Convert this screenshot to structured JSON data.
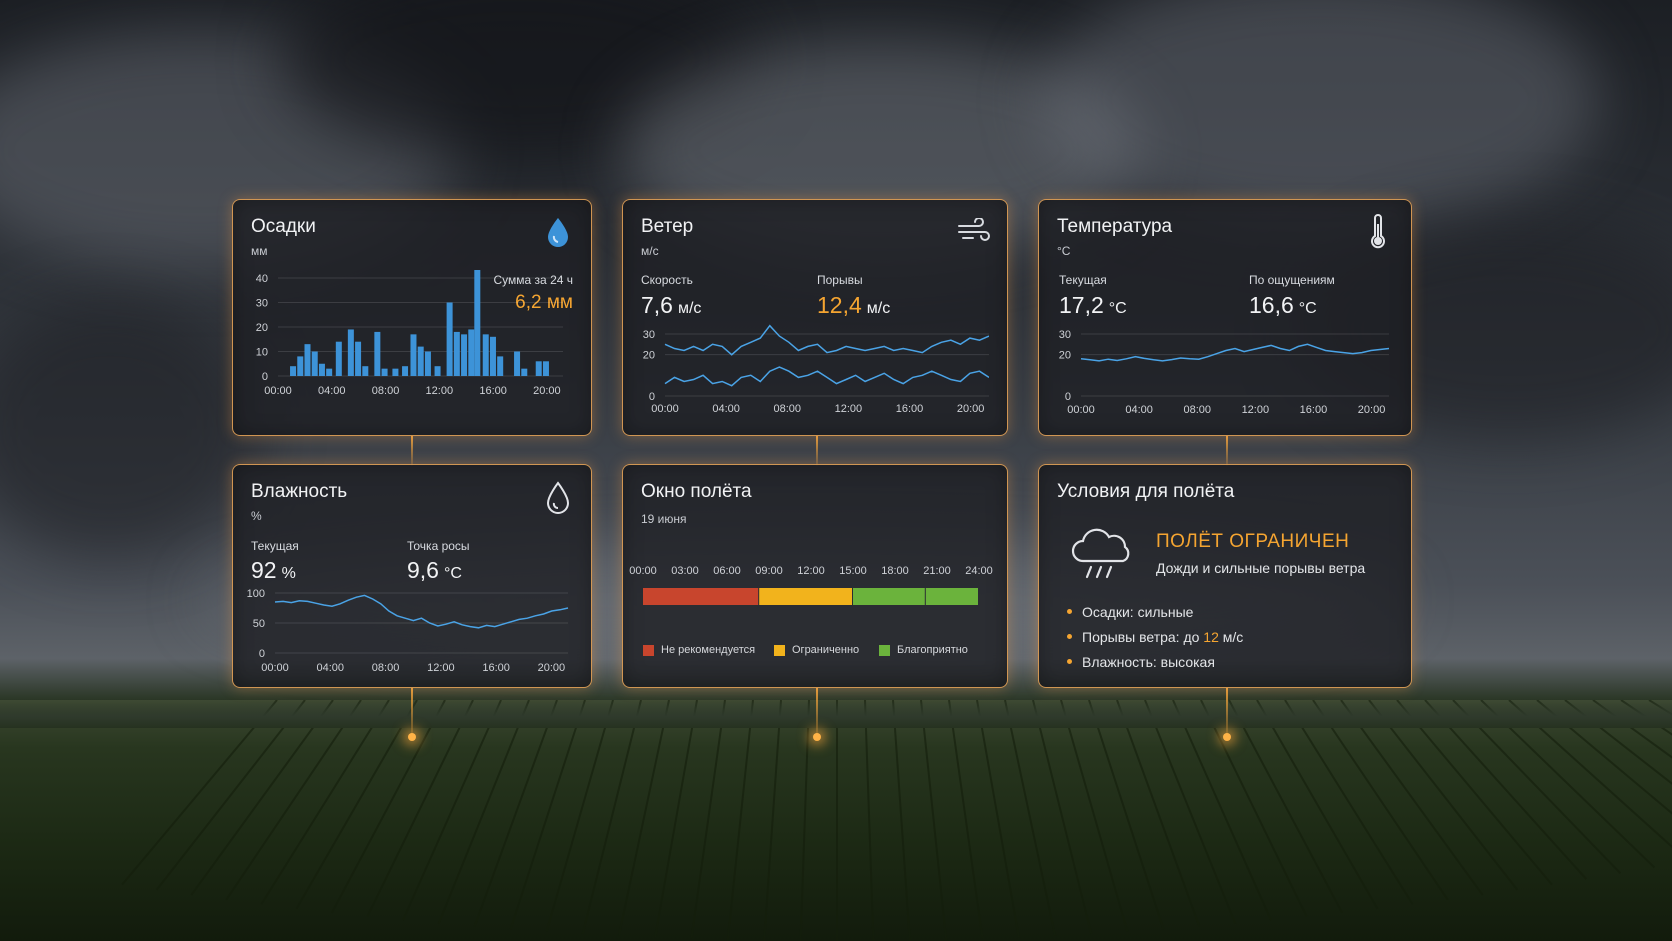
{
  "precipitation": {
    "title": "Осадки",
    "unit": "мм",
    "icon": "water-drop-icon",
    "sum_label": "Сумма за 24 ч",
    "sum_value": "6,2 мм",
    "y_ticks": [
      "40",
      "30",
      "20",
      "10",
      "0"
    ],
    "x_ticks": [
      "00:00",
      "04:00",
      "08:00",
      "12:00",
      "16:00",
      "20:00"
    ]
  },
  "wind": {
    "title": "Ветер",
    "unit": "м/с",
    "icon": "wind-icon",
    "speed_label": "Скорость",
    "speed_value": "7,6",
    "speed_unit": "м/с",
    "gust_label": "Порывы",
    "gust_value": "12,4",
    "gust_unit": "м/с",
    "y_ticks": [
      "30",
      "20",
      "0"
    ],
    "x_ticks": [
      "00:00",
      "04:00",
      "08:00",
      "12:00",
      "16:00",
      "20:00"
    ]
  },
  "temperature": {
    "title": "Температура",
    "unit": "°C",
    "icon": "thermometer-icon",
    "current_label": "Текущая",
    "current_value": "17,2",
    "current_unit": "°C",
    "feels_label": "По ощущениям",
    "feels_value": "16,6",
    "feels_unit": "°C",
    "y_ticks": [
      "30",
      "20",
      "0"
    ],
    "x_ticks": [
      "00:00",
      "04:00",
      "08:00",
      "12:00",
      "16:00",
      "20:00"
    ]
  },
  "humidity": {
    "title": "Влажность",
    "unit": "%",
    "icon": "humidity-drop-icon",
    "current_label": "Текущая",
    "current_value": "92",
    "current_unit": "%",
    "dew_label": "Точка росы",
    "dew_value": "9,6",
    "dew_unit": "°C",
    "y_ticks": [
      "100",
      "50",
      "0"
    ],
    "x_ticks": [
      "00:00",
      "04:00",
      "08:00",
      "12:00",
      "16:00",
      "20:00"
    ]
  },
  "flight_window": {
    "title": "Окно полёта",
    "date": "19 июня",
    "x_ticks": [
      "00:00",
      "03:00",
      "06:00",
      "09:00",
      "12:00",
      "15:00",
      "18:00",
      "21:00",
      "24:00"
    ],
    "legend": [
      {
        "label": "Не рекомендуется",
        "color": "#c8452d"
      },
      {
        "label": "Ограниченно",
        "color": "#f2b31c"
      },
      {
        "label": "Благоприятно",
        "color": "#6bb33c"
      }
    ]
  },
  "conditions": {
    "title": "Условия для полёта",
    "icon": "rain-cloud-icon",
    "status": "ПОЛЁТ ОГРАНИЧЕН",
    "reason": "Дожди и сильные порывы ветра",
    "b1": "Осадки: сильные",
    "b2_pre": "Порывы ветра: до ",
    "b2_val": "12",
    "b2_post": " м/с",
    "b3": "Влажность: высокая"
  },
  "chart_data": [
    {
      "type": "bar",
      "title": "Осадки",
      "ylabel": "мм",
      "ylim": [
        0,
        40
      ],
      "x_range_hours": [
        0,
        23
      ],
      "bars": [
        {
          "x": 1.0,
          "v": 4
        },
        {
          "x": 1.6,
          "v": 8
        },
        {
          "x": 2.2,
          "v": 13
        },
        {
          "x": 2.8,
          "v": 10
        },
        {
          "x": 3.4,
          "v": 5
        },
        {
          "x": 4.0,
          "v": 3
        },
        {
          "x": 4.8,
          "v": 14
        },
        {
          "x": 5.8,
          "v": 19
        },
        {
          "x": 6.4,
          "v": 14
        },
        {
          "x": 7.0,
          "v": 4
        },
        {
          "x": 8.0,
          "v": 18
        },
        {
          "x": 8.6,
          "v": 3
        },
        {
          "x": 9.5,
          "v": 3
        },
        {
          "x": 10.3,
          "v": 4
        },
        {
          "x": 11.0,
          "v": 17
        },
        {
          "x": 11.6,
          "v": 12
        },
        {
          "x": 12.2,
          "v": 10
        },
        {
          "x": 13.0,
          "v": 4
        },
        {
          "x": 14.0,
          "v": 30
        },
        {
          "x": 14.6,
          "v": 18
        },
        {
          "x": 15.2,
          "v": 17
        },
        {
          "x": 15.8,
          "v": 19
        },
        {
          "x": 16.3,
          "v": 44
        },
        {
          "x": 17.0,
          "v": 17
        },
        {
          "x": 17.6,
          "v": 16
        },
        {
          "x": 18.2,
          "v": 8
        },
        {
          "x": 19.6,
          "v": 10
        },
        {
          "x": 20.2,
          "v": 3
        },
        {
          "x": 21.4,
          "v": 6
        },
        {
          "x": 22.0,
          "v": 6
        }
      ]
    },
    {
      "type": "line",
      "title": "Ветер",
      "ylabel": "м/с",
      "ylim": [
        0,
        30
      ],
      "x_range_hours": [
        0,
        23
      ],
      "series": [
        {
          "key": "gusts",
          "values": [
            25,
            23,
            22,
            24,
            22,
            25,
            24,
            20,
            24,
            26,
            28,
            34,
            29,
            26,
            22,
            24,
            25,
            21,
            22,
            24,
            23,
            22,
            23,
            24,
            22,
            23,
            22,
            21,
            24,
            26,
            27,
            25,
            28,
            27,
            29
          ]
        },
        {
          "key": "speed",
          "values": [
            6,
            9,
            7,
            8,
            10,
            6,
            7,
            5,
            9,
            10,
            7,
            12,
            14,
            12,
            9,
            10,
            12,
            9,
            6,
            8,
            10,
            7,
            9,
            11,
            8,
            6,
            9,
            10,
            12,
            10,
            8,
            7,
            11,
            12,
            9
          ]
        }
      ]
    },
    {
      "type": "line",
      "title": "Температура",
      "ylabel": "°C",
      "ylim": [
        0,
        30
      ],
      "x_range_hours": [
        0,
        23
      ],
      "series": [
        {
          "key": "temperature",
          "values": [
            18,
            17.5,
            17,
            17.8,
            17.2,
            18,
            19,
            18.2,
            17.5,
            17,
            17.6,
            18.4,
            18,
            17.8,
            19,
            20.5,
            22,
            23,
            21.5,
            22.5,
            23.5,
            24.5,
            23,
            22,
            24,
            25,
            23.5,
            22,
            21.5,
            21,
            20.5,
            21,
            22,
            22.5,
            23
          ]
        }
      ]
    },
    {
      "type": "line",
      "title": "Влажность",
      "ylabel": "%",
      "ylim": [
        0,
        100
      ],
      "x_range_hours": [
        0,
        23
      ],
      "series": [
        {
          "key": "humidity",
          "values": [
            85,
            86,
            84,
            87,
            86,
            83,
            80,
            78,
            82,
            88,
            93,
            96,
            90,
            82,
            70,
            62,
            58,
            54,
            58,
            50,
            45,
            48,
            52,
            47,
            44,
            42,
            46,
            44,
            48,
            52,
            56,
            58,
            62,
            65,
            70,
            72,
            75
          ]
        }
      ]
    },
    {
      "type": "bar",
      "title": "Окно полёта",
      "x_range_hours": [
        0,
        24
      ],
      "segments": [
        {
          "from": 0,
          "to": 8.3,
          "status": "Не рекомендуется",
          "color": "#c8452d"
        },
        {
          "from": 8.3,
          "to": 15,
          "status": "Ограниченно",
          "color": "#f2b31c"
        },
        {
          "from": 15,
          "to": 20.2,
          "status": "Благоприятно",
          "color": "#6bb33c"
        },
        {
          "from": 20.2,
          "to": 24,
          "status": "Благоприятно",
          "color": "#6bb33c"
        }
      ]
    }
  ]
}
